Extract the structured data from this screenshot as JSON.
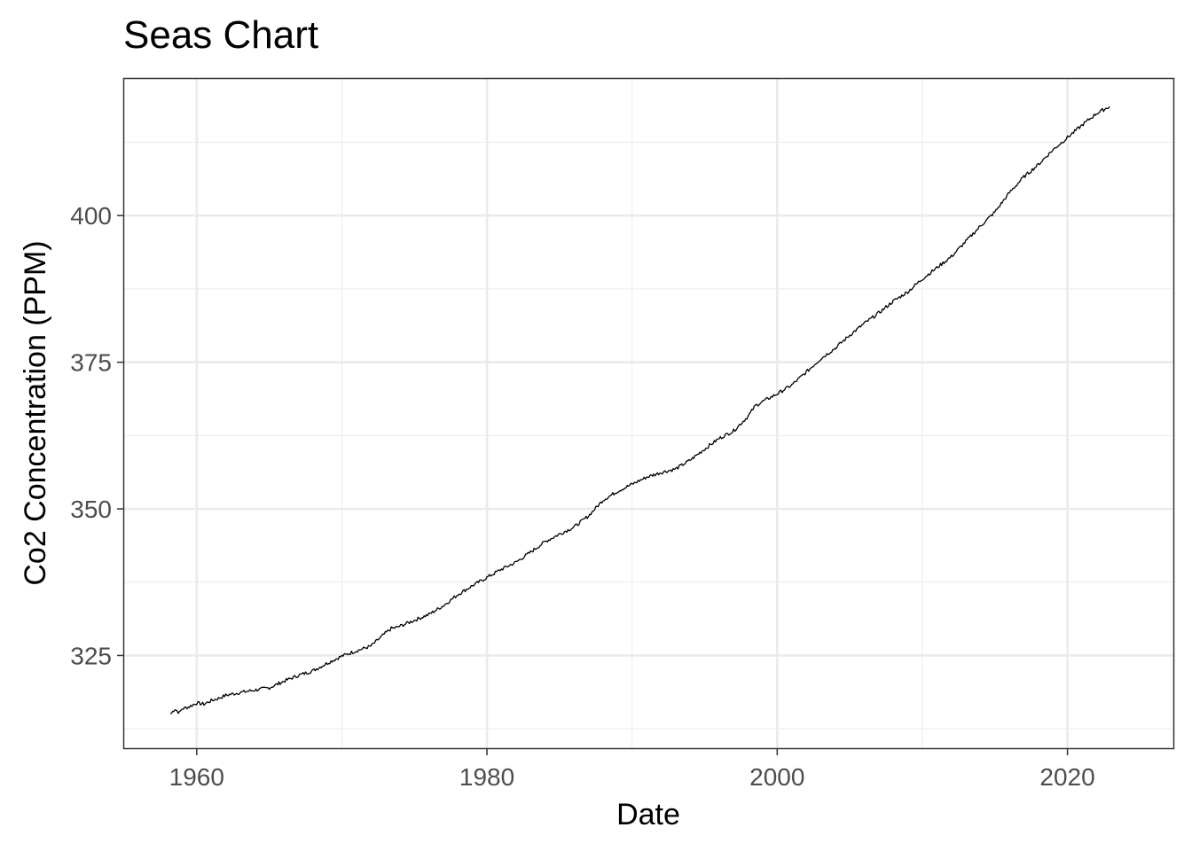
{
  "chart_data": {
    "type": "line",
    "title": "Seas Chart",
    "xlabel": "Date",
    "ylabel": "Co2 Concentration (PPM)",
    "xlim": [
      1955.0,
      2027.3
    ],
    "ylim": [
      309.2,
      423.3
    ],
    "x_ticks": [
      1960,
      1980,
      2000,
      2020
    ],
    "x_tick_labels": [
      "1960",
      "1980",
      "2000",
      "2020"
    ],
    "y_ticks": [
      325,
      350,
      375,
      400
    ],
    "y_tick_labels": [
      "325",
      "350",
      "375",
      "400"
    ],
    "grid": true,
    "line_color": "#000000",
    "series": [
      {
        "x": [
          1958.2,
          1958.5,
          1958.8,
          1959.0,
          1959.5,
          1960.0,
          1960.5,
          1961.0,
          1961.5,
          1962.0,
          1963.0,
          1964.0,
          1965.0,
          1966.0,
          1967.0,
          1968.0,
          1969.0,
          1970.0,
          1971.0,
          1972.0,
          1973.0,
          1973.4,
          1973.8,
          1975.0,
          1976.0,
          1977.0,
          1978.0,
          1979.0,
          1980.0,
          1981.0,
          1982.0,
          1983.0,
          1984.0,
          1985.0,
          1986.0,
          1987.0,
          1988.0,
          1989.0,
          1990.0,
          1991.0,
          1992.0,
          1993.0,
          1994.0,
          1995.0,
          1996.0,
          1997.0,
          1998.0,
          1998.5,
          1999.0,
          2000.0,
          2001.0,
          2002.0,
          2003.0,
          2004.0,
          2005.0,
          2006.0,
          2007.0,
          2008.0,
          2009.0,
          2010.0,
          2011.0,
          2012.0,
          2013.0,
          2014.0,
          2015.0,
          2016.0,
          2017.0,
          2018.0,
          2019.0,
          2020.0,
          2021.0,
          2022.0,
          2022.9
        ],
        "y": [
          315.0,
          315.9,
          315.2,
          315.9,
          316.3,
          316.9,
          316.7,
          317.3,
          317.7,
          318.2,
          318.7,
          319.1,
          319.5,
          320.6,
          321.6,
          322.4,
          323.7,
          324.9,
          325.8,
          326.6,
          328.8,
          329.6,
          329.8,
          331.0,
          332.0,
          333.5,
          335.4,
          336.9,
          338.3,
          339.7,
          340.9,
          342.6,
          344.4,
          345.7,
          346.9,
          348.8,
          351.5,
          353.0,
          354.2,
          355.4,
          356.2,
          356.8,
          358.3,
          360.2,
          362.0,
          363.3,
          365.8,
          367.6,
          368.3,
          369.6,
          371.1,
          373.3,
          375.6,
          377.4,
          379.6,
          381.6,
          383.4,
          385.4,
          387.0,
          389.2,
          391.1,
          393.0,
          395.6,
          398.2,
          400.6,
          403.9,
          406.6,
          408.7,
          411.2,
          413.3,
          415.4,
          417.4,
          418.6
        ]
      }
    ]
  }
}
